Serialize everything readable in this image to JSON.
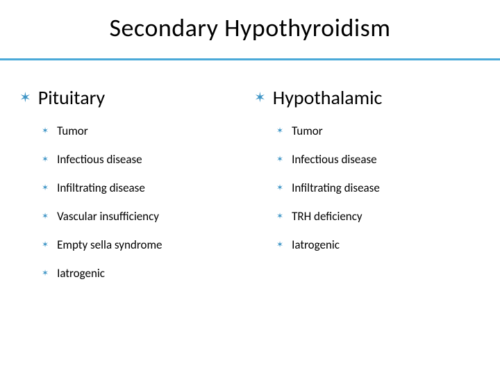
{
  "title": {
    "text": "Secondary Hypothyroidism",
    "color": "#000000",
    "fontsize": 36
  },
  "divider": {
    "color": "#4aa9d8",
    "height": 3
  },
  "bullet": {
    "glyph": "✶",
    "color": "#3e95c6"
  },
  "heading_style": {
    "color": "#000000",
    "fontsize": 28
  },
  "item_style": {
    "color": "#000000",
    "fontsize": 17
  },
  "columns": [
    {
      "heading": "Pituitary",
      "items": [
        "Tumor",
        "Infectious disease",
        "Infiltrating disease",
        "Vascular insufficiency",
        "Empty sella syndrome",
        "Iatrogenic"
      ]
    },
    {
      "heading": "Hypothalamic",
      "items": [
        "Tumor",
        "Infectious disease",
        "Infiltrating disease",
        "TRH deficiency",
        "Iatrogenic"
      ]
    }
  ]
}
